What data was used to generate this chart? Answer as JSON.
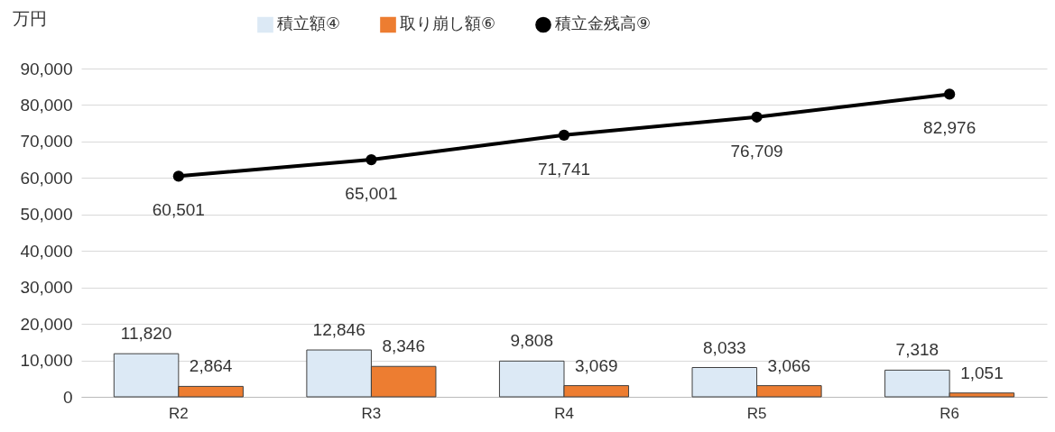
{
  "chart_data": {
    "type": "bar",
    "ylabel": "万円",
    "categories": [
      "R2",
      "R3",
      "R4",
      "R5",
      "R6"
    ],
    "series": [
      {
        "name": "積立額④",
        "color": "#dce9f5",
        "values": [
          11820,
          12846,
          9808,
          8033,
          7318
        ],
        "value_labels": [
          "11,820",
          "12,846",
          "9,808",
          "8,033",
          "7,318"
        ]
      },
      {
        "name": "取り崩し額⑥",
        "color": "#ed7d31",
        "values": [
          2864,
          8346,
          3069,
          3066,
          1051
        ],
        "value_labels": [
          "2,864",
          "8,346",
          "3,069",
          "3,066",
          "1,051"
        ]
      },
      {
        "name": "積立金残高⑨",
        "type": "line",
        "color": "#000000",
        "values": [
          60501,
          65001,
          71741,
          76709,
          82976
        ],
        "value_labels": [
          "60,501",
          "65,001",
          "71,741",
          "76,709",
          "82,976"
        ]
      }
    ],
    "ylim": [
      0,
      90000
    ],
    "yticks": [
      {
        "value": 0,
        "label": "0"
      },
      {
        "value": 10000,
        "label": "10,000"
      },
      {
        "value": 20000,
        "label": "20,000"
      },
      {
        "value": 30000,
        "label": "30,000"
      },
      {
        "value": 40000,
        "label": "40,000"
      },
      {
        "value": 50000,
        "label": "50,000"
      },
      {
        "value": 60000,
        "label": "60,000"
      },
      {
        "value": 70000,
        "label": "70,000"
      },
      {
        "value": 80000,
        "label": "80,000"
      },
      {
        "value": 90000,
        "label": "90,000"
      }
    ],
    "grid": "y",
    "legend": "top",
    "marker": "circle"
  }
}
